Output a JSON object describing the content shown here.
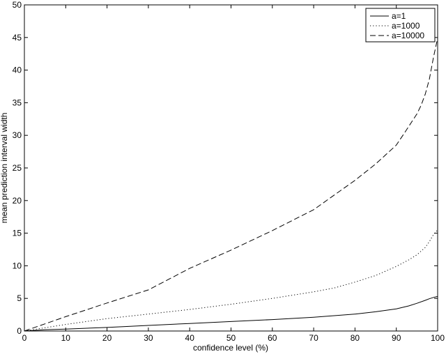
{
  "chart_data": {
    "type": "line",
    "title": "",
    "xlabel": "confidence level (%)",
    "ylabel": "mean prediction interval width",
    "xlim": [
      0,
      100
    ],
    "ylim": [
      0,
      50
    ],
    "xticks": [
      0,
      10,
      20,
      30,
      40,
      50,
      60,
      70,
      80,
      90,
      100
    ],
    "yticks": [
      0,
      5,
      10,
      15,
      20,
      25,
      30,
      35,
      40,
      45,
      50
    ],
    "grid": false,
    "legend_position": "top-right",
    "series": [
      {
        "name": "a=1",
        "style": "solid",
        "color": "#000000",
        "x": [
          0,
          5,
          10,
          20,
          30,
          40,
          50,
          60,
          70,
          80,
          85,
          90,
          93,
          95,
          97,
          98,
          99,
          100
        ],
        "y": [
          0,
          0.2,
          0.3,
          0.55,
          0.85,
          1.15,
          1.45,
          1.75,
          2.1,
          2.6,
          2.95,
          3.4,
          3.85,
          4.25,
          4.7,
          4.95,
          5.15,
          5.3
        ]
      },
      {
        "name": "a=1000",
        "style": "dotted",
        "color": "#000000",
        "x": [
          0,
          5,
          10,
          20,
          30,
          40,
          50,
          60,
          70,
          75,
          80,
          85,
          90,
          93,
          95,
          97,
          98,
          99,
          100
        ],
        "y": [
          0,
          0.5,
          1.0,
          1.9,
          2.6,
          3.3,
          4.1,
          5.0,
          6.0,
          6.6,
          7.5,
          8.5,
          9.9,
          10.9,
          11.7,
          12.8,
          13.7,
          14.8,
          15.5
        ]
      },
      {
        "name": "a=10000",
        "style": "dashed",
        "color": "#000000",
        "x": [
          0,
          5,
          10,
          20,
          30,
          40,
          50,
          60,
          70,
          80,
          85,
          90,
          92,
          95,
          96,
          97,
          98,
          99,
          100
        ],
        "y": [
          0,
          1.1,
          2.2,
          4.3,
          6.3,
          9.6,
          12.4,
          15.4,
          18.6,
          23.1,
          25.6,
          28.5,
          30.4,
          33.3,
          34.6,
          36.3,
          38.6,
          42.0,
          44.9
        ]
      }
    ]
  }
}
